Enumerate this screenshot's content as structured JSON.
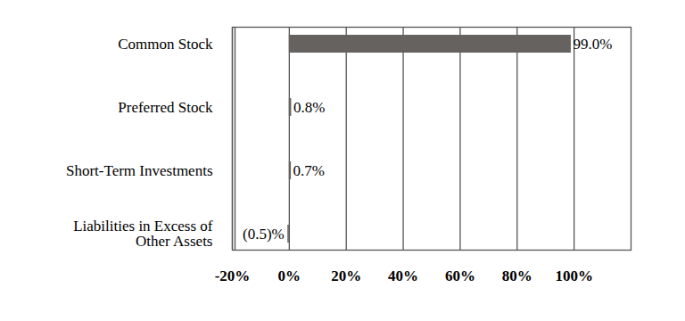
{
  "chart_data": {
    "type": "bar",
    "orientation": "horizontal",
    "categories": [
      "Common Stock",
      "Preferred Stock",
      "Short-Term Investments",
      "Liabilities in Excess of Other Assets"
    ],
    "values": [
      99.0,
      0.8,
      0.7,
      -0.5
    ],
    "value_labels": [
      "99.0%",
      "0.8%",
      "0.7%",
      "(0.5)%"
    ],
    "data_labels": true,
    "color": "#656260",
    "xlim": [
      -20,
      120
    ],
    "xticks": [
      {
        "value": -20,
        "label": "-20%"
      },
      {
        "value": 0,
        "label": "0%"
      },
      {
        "value": 20,
        "label": "20%"
      },
      {
        "value": 40,
        "label": "40%"
      },
      {
        "value": 60,
        "label": "60%"
      },
      {
        "value": 80,
        "label": "80%"
      },
      {
        "value": 100,
        "label": "100%"
      }
    ],
    "grid": true
  }
}
